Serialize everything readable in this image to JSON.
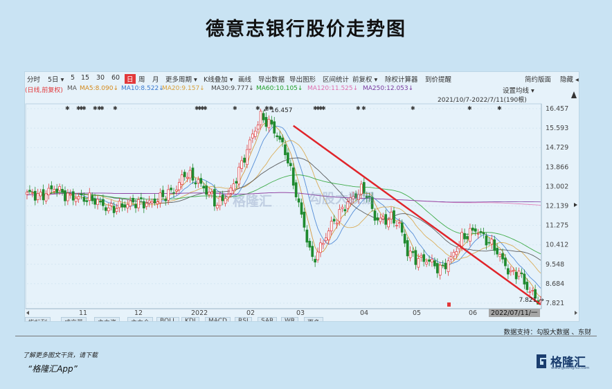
{
  "title": "德意志银行股价走势图",
  "toolbar": {
    "left": [
      "分时",
      "5日 ▾",
      "5",
      "15",
      "30",
      "60",
      "日",
      "周",
      "月",
      "更多周期 ▾",
      "K线叠加 ▾",
      "画线",
      "导出数据",
      "导出图形",
      "区间统计",
      "前复权 ▾",
      "除权计算器",
      "到价提醒"
    ],
    "right": [
      "简约版面",
      "隐藏 ◂"
    ]
  },
  "ma_labels": [
    {
      "text": "(日线,前复权)",
      "color": "#e2383a"
    },
    {
      "text": "MA",
      "color": "#555555"
    },
    {
      "text": "MA5:8.090↓",
      "color": "#d48a1c"
    },
    {
      "text": "MA10:8.522↓",
      "color": "#3a7ad0"
    },
    {
      "text": "MA20:9.157↓",
      "color": "#d8a13c"
    },
    {
      "text": "MA30:9.777↓",
      "color": "#444444"
    },
    {
      "text": "MA60:10.105↓",
      "color": "#22a02a"
    },
    {
      "text": "MA120:11.525↓",
      "color": "#e070b0"
    },
    {
      "text": "MA250:12.053↓",
      "color": "#7a3aa0"
    }
  ],
  "set_ma": "设置均线 ▾",
  "date_range": "2021/10/7-2022/7/11(190根)",
  "tabs": [
    "指标列",
    "成交量",
    "主力资",
    "主力仓",
    "BOLL",
    "KDJ",
    "MACD",
    "RSI",
    "SAR",
    "WR",
    "更多"
  ],
  "watermarks": [
    "格隆汇",
    "勾股大数据"
  ],
  "source": "数据支持：勾股大数据 、东财",
  "promo_line1": "了解更多图文干货，请下载",
  "promo_line2": "“格隆汇App”",
  "logo_text": "格隆汇",
  "logo_sub": "www.gelonghui.com",
  "chart_data": {
    "type": "candlestick",
    "y_ticks": [
      "16.457",
      "15.593",
      "14.729",
      "13.866",
      "13.002",
      "12.139",
      "11.275",
      "10.412",
      "9.548",
      "8.684",
      "7.821"
    ],
    "ylim": [
      7.821,
      16.457
    ],
    "x_ticks": [
      "11",
      "12",
      "2022",
      "02",
      "03",
      "04",
      "05",
      "06",
      "2022/07/11/一"
    ],
    "high_label": "16.457",
    "low_label": "7.821",
    "close_key": [
      [
        0,
        12.75
      ],
      [
        5,
        12.55
      ],
      [
        10,
        12.95
      ],
      [
        15,
        12.55
      ],
      [
        20,
        12.5
      ],
      [
        25,
        12.4
      ],
      [
        30,
        12.0
      ],
      [
        35,
        12.15
      ],
      [
        40,
        12.3
      ],
      [
        45,
        12.25
      ],
      [
        50,
        12.55
      ],
      [
        55,
        12.9
      ],
      [
        58,
        13.6
      ],
      [
        63,
        13.2
      ],
      [
        68,
        12.55
      ],
      [
        70,
        12.2
      ],
      [
        75,
        12.8
      ],
      [
        80,
        14.3
      ],
      [
        83,
        15.3
      ],
      [
        86,
        16.1
      ],
      [
        90,
        15.7
      ],
      [
        95,
        14.6
      ],
      [
        100,
        12.2
      ],
      [
        105,
        9.7
      ],
      [
        108,
        10.3
      ],
      [
        112,
        11.3
      ],
      [
        118,
        12.3
      ],
      [
        123,
        12.85
      ],
      [
        125,
        12.7
      ],
      [
        128,
        11.6
      ],
      [
        131,
        11.5
      ],
      [
        134,
        11.6
      ],
      [
        137,
        11.3
      ],
      [
        140,
        10.1
      ],
      [
        143,
        9.8
      ],
      [
        148,
        9.7
      ],
      [
        152,
        9.3
      ],
      [
        156,
        9.8
      ],
      [
        160,
        10.7
      ],
      [
        165,
        11.1
      ],
      [
        168,
        10.75
      ],
      [
        172,
        10.3
      ],
      [
        175,
        9.7
      ],
      [
        178,
        9.1
      ],
      [
        181,
        9.2
      ],
      [
        184,
        8.5
      ],
      [
        186,
        8.2
      ],
      [
        189,
        7.9
      ]
    ],
    "trend_line": {
      "from": [
        98,
        15.7
      ],
      "to": [
        189,
        7.821
      ]
    }
  }
}
